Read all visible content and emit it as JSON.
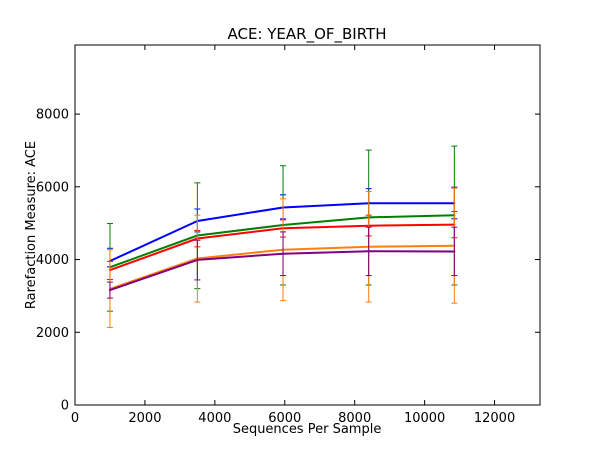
{
  "chart_data": {
    "type": "line",
    "title": "ACE: YEAR_OF_BIRTH",
    "xlabel": "Sequences Per Sample",
    "ylabel": "Rarefaction Measure: ACE",
    "xlim": [
      0,
      13300
    ],
    "ylim": [
      0,
      9900
    ],
    "x_ticks": [
      0,
      2000,
      4000,
      6000,
      8000,
      10000,
      12000
    ],
    "x_tick_labels": [
      "0",
      "2000",
      "4000",
      "6000",
      "8000",
      "10000",
      "12000"
    ],
    "y_ticks": [
      0,
      2000,
      4000,
      6000,
      8000
    ],
    "y_tick_labels": [
      "0",
      "2000",
      "4000",
      "6000",
      "8000"
    ],
    "grid": false,
    "legend": "none",
    "x": [
      1000,
      3500,
      5950,
      8400,
      10850
    ],
    "series": [
      {
        "color": "#0000ff",
        "values": [
          3960,
          5060,
          5430,
          5550,
          5550
        ],
        "err_low": [
          3800,
          4760,
          5120,
          5150,
          5120
        ],
        "err_high": [
          4310,
          5390,
          5780,
          5950,
          5990
        ]
      },
      {
        "color": "#008000",
        "values": [
          3790,
          4660,
          4950,
          5160,
          5220
        ],
        "err_low": [
          2580,
          3200,
          3300,
          3300,
          3300
        ],
        "err_high": [
          4990,
          6110,
          6580,
          7010,
          7120
        ]
      },
      {
        "color": "#ff0000",
        "values": [
          3710,
          4580,
          4860,
          4930,
          4960
        ],
        "err_low": [
          3450,
          4350,
          4620,
          4650,
          4600
        ],
        "err_high": [
          3950,
          4800,
          5090,
          5220,
          5320
        ]
      },
      {
        "color": "#ff7f0e",
        "values": [
          3190,
          4030,
          4270,
          4350,
          4380
        ],
        "err_low": [
          2130,
          2830,
          2870,
          2830,
          2800
        ],
        "err_high": [
          4270,
          5220,
          5670,
          5870,
          5960
        ]
      },
      {
        "color": "#800080",
        "values": [
          3160,
          3990,
          4160,
          4230,
          4220
        ],
        "err_low": [
          2940,
          3440,
          3560,
          3560,
          3560
        ],
        "err_high": [
          3380,
          4530,
          4760,
          4890,
          4890
        ]
      }
    ]
  }
}
